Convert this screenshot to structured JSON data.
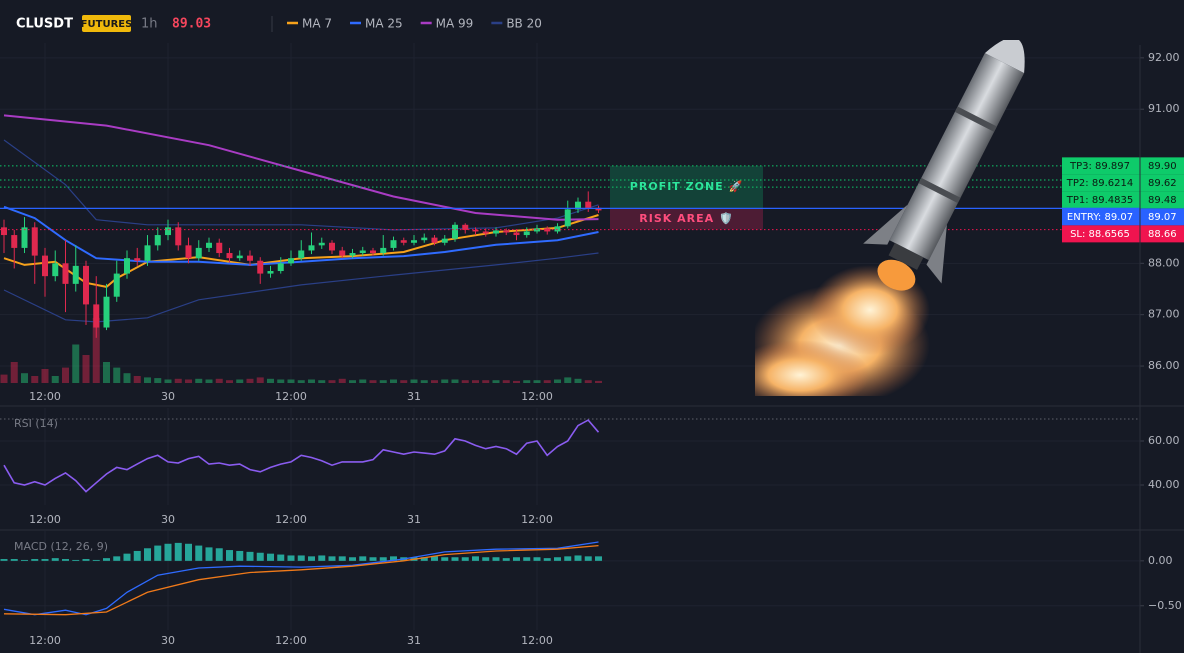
{
  "header": {
    "symbol": "CLUSDT",
    "badge": "FUTURES",
    "interval": "1h",
    "price": 89.03
  },
  "chart_data": [
    {
      "type": "candlestick",
      "xlim": [
        -0.39,
        110.83
      ],
      "xticks": [
        {
          "value": 4,
          "label": "12:00"
        },
        {
          "value": 16,
          "label": "30"
        },
        {
          "value": 28,
          "label": "12:00"
        },
        {
          "value": 40,
          "label": "31"
        },
        {
          "value": 52,
          "label": "12:00"
        }
      ],
      "ylim": [
        85.67,
        92.25
      ],
      "yticks": [
        {
          "value": 92,
          "label": "92.00"
        },
        {
          "value": 91,
          "label": "91.00"
        },
        {
          "value": 88,
          "label": "88.00"
        },
        {
          "value": 87,
          "label": "87.00"
        },
        {
          "value": 86,
          "label": "86.00"
        }
      ],
      "up_color": "#26d07c",
      "down_color": "#e0294f",
      "open": [
        88.7,
        88.55,
        88.3,
        88.7,
        88.15,
        87.75,
        88.0,
        87.6,
        87.95,
        87.2,
        86.75,
        87.35,
        87.8,
        88.1,
        88.05,
        88.35,
        88.55,
        88.7,
        88.35,
        88.1,
        88.3,
        88.4,
        88.2,
        88.1,
        88.15,
        88.05,
        87.8,
        87.85,
        88.0,
        88.1,
        88.25,
        88.35,
        88.4,
        88.25,
        88.15,
        88.2,
        88.25,
        88.2,
        88.3,
        88.45,
        88.4,
        88.45,
        88.5,
        88.4,
        88.48,
        88.75,
        88.65,
        88.62,
        88.58,
        88.64,
        88.6,
        88.55,
        88.62,
        88.68,
        88.62,
        88.72,
        89.05,
        89.2,
        89.08
      ],
      "high": [
        88.85,
        88.65,
        88.9,
        88.8,
        88.3,
        88.25,
        88.45,
        88.35,
        88.05,
        87.75,
        87.6,
        88.05,
        88.25,
        88.3,
        88.55,
        88.7,
        88.85,
        88.8,
        88.5,
        88.45,
        88.5,
        88.48,
        88.3,
        88.25,
        88.25,
        88.12,
        87.95,
        88.12,
        88.25,
        88.45,
        88.6,
        88.5,
        88.45,
        88.32,
        88.28,
        88.32,
        88.3,
        88.55,
        88.52,
        88.5,
        88.55,
        88.58,
        88.55,
        88.55,
        88.8,
        88.78,
        88.7,
        88.68,
        88.7,
        88.68,
        88.66,
        88.7,
        88.75,
        88.72,
        88.78,
        89.22,
        89.28,
        89.4,
        89.12
      ],
      "low": [
        88.2,
        87.9,
        88.2,
        87.6,
        87.35,
        87.65,
        87.05,
        87.45,
        86.8,
        86.55,
        86.7,
        87.25,
        87.7,
        87.95,
        87.95,
        88.25,
        88.45,
        88.25,
        88.0,
        88.05,
        88.22,
        88.12,
        88.02,
        88.05,
        87.95,
        87.6,
        87.72,
        87.8,
        87.95,
        88.05,
        88.18,
        88.28,
        88.18,
        88.1,
        88.1,
        88.15,
        88.15,
        88.15,
        88.25,
        88.35,
        88.35,
        88.4,
        88.35,
        88.35,
        88.42,
        88.58,
        88.55,
        88.52,
        88.52,
        88.55,
        88.45,
        88.5,
        88.58,
        88.56,
        88.58,
        88.68,
        88.98,
        89.0,
        88.98
      ],
      "close": [
        88.55,
        88.3,
        88.7,
        88.15,
        87.75,
        88.0,
        87.6,
        87.95,
        87.2,
        86.75,
        87.35,
        87.8,
        88.1,
        88.05,
        88.35,
        88.55,
        88.7,
        88.35,
        88.1,
        88.3,
        88.4,
        88.2,
        88.1,
        88.15,
        88.05,
        87.8,
        87.85,
        88.0,
        88.1,
        88.25,
        88.35,
        88.4,
        88.25,
        88.15,
        88.2,
        88.25,
        88.2,
        88.3,
        88.45,
        88.4,
        88.45,
        88.5,
        88.4,
        88.48,
        88.75,
        88.65,
        88.62,
        88.58,
        88.64,
        88.6,
        88.55,
        88.62,
        88.68,
        88.62,
        88.72,
        89.05,
        89.2,
        89.08,
        89.03
      ],
      "volume": [
        12,
        30,
        14,
        10,
        20,
        10,
        22,
        55,
        40,
        93,
        30,
        22,
        14,
        10,
        8,
        7,
        5,
        6,
        5,
        6,
        5,
        6,
        4,
        5,
        6,
        8,
        6,
        5,
        5,
        4,
        5,
        4,
        4,
        6,
        4,
        5,
        4,
        4,
        5,
        4,
        5,
        4,
        4,
        5,
        5,
        4,
        4,
        4,
        4,
        4,
        3,
        4,
        4,
        4,
        5,
        8,
        6,
        4,
        3
      ],
      "volume_ylim": [
        0,
        100
      ],
      "series": [
        {
          "name": "MA 7",
          "color": "#f7a21b",
          "x": [
            0,
            2,
            5,
            8,
            10,
            11,
            14,
            19,
            24,
            29,
            34,
            39,
            43,
            48,
            54,
            58
          ],
          "values": [
            88.1,
            87.97,
            88.03,
            87.62,
            87.54,
            87.71,
            88.03,
            88.12,
            87.97,
            88.1,
            88.14,
            88.22,
            88.45,
            88.61,
            88.69,
            88.94
          ]
        },
        {
          "name": "MA 25",
          "color": "#2f6bff",
          "x": [
            0,
            3,
            6,
            9,
            14,
            19,
            24,
            29,
            34,
            39,
            43,
            48,
            54,
            58
          ],
          "values": [
            89.1,
            88.88,
            88.45,
            88.1,
            88.03,
            88.03,
            87.97,
            88.03,
            88.1,
            88.14,
            88.22,
            88.36,
            88.45,
            88.61
          ]
        },
        {
          "name": "MA 99",
          "color": "#a93cc4",
          "x": [
            0,
            10,
            20,
            29,
            38,
            46,
            54,
            58
          ],
          "values": [
            90.88,
            90.68,
            90.3,
            89.8,
            89.3,
            88.98,
            88.85,
            88.86
          ]
        }
      ],
      "bands": {
        "name": "BB 20",
        "color": "#2a3f86",
        "x": [
          0,
          6,
          9,
          14,
          19,
          29,
          38,
          48,
          54,
          58
        ],
        "upper": [
          90.4,
          89.53,
          88.85,
          88.75,
          88.75,
          88.75,
          88.65,
          88.69,
          88.88,
          89.14
        ],
        "lower": [
          87.48,
          86.9,
          86.86,
          86.94,
          87.29,
          87.58,
          87.77,
          87.97,
          88.1,
          88.2
        ]
      },
      "levels": [
        {
          "label": "TP3: 89.897",
          "value": 89.897,
          "axis_label": "89.90",
          "color": "#0ecb6a",
          "style": "dotted"
        },
        {
          "label": "TP2: 89.6214",
          "value": 89.6214,
          "axis_label": "89.62",
          "color": "#0ecb6a",
          "style": "dotted"
        },
        {
          "label": "TP1: 89.4835",
          "value": 89.4835,
          "axis_label": "89.48",
          "color": "#0ecb6a",
          "style": "dotted"
        },
        {
          "label": "ENTRY: 89.07",
          "value": 89.07,
          "axis_label": "89.07",
          "color": "#2962ff",
          "style": "solid"
        },
        {
          "label": "SL: 88.6565",
          "value": 88.6565,
          "axis_label": "88.66",
          "color": "#f0144f",
          "style": "dotted"
        }
      ],
      "zones": [
        {
          "text": "PROFIT ZONE 🚀",
          "color": "#0d8f5b"
        },
        {
          "text": "RISK AREA 🛡️",
          "color": "#e0245e"
        }
      ]
    },
    {
      "type": "line",
      "title": "RSI (14)",
      "ylim": [
        30.9,
        74.1
      ],
      "yticks": [
        {
          "value": 60,
          "label": "60.00"
        },
        {
          "value": 40,
          "label": "40.00"
        }
      ],
      "ref_line": 70,
      "color": "#8a5cf0",
      "values": [
        49,
        41,
        40,
        41.5,
        40,
        43,
        45.5,
        42,
        37,
        41,
        45,
        48,
        47,
        49.5,
        52,
        53.5,
        50.5,
        50,
        52,
        53,
        49.5,
        50,
        49,
        49.5,
        47,
        46,
        48,
        49.5,
        50.5,
        53.5,
        52.5,
        51,
        49,
        50.5,
        50.5,
        50.5,
        51.5,
        56,
        55,
        54,
        55,
        54.5,
        54,
        55.5,
        61,
        60,
        58,
        56.5,
        57.5,
        56.5,
        54,
        59,
        60,
        53.5,
        57.5,
        60,
        67,
        69.5,
        64
      ]
    },
    {
      "type": "macd",
      "title": "MACD (12, 26, 9)",
      "ylim": [
        -0.77,
        0.31
      ],
      "yticks": [
        {
          "value": 0,
          "label": "0.00"
        },
        {
          "value": -0.5,
          "label": "−0.50"
        }
      ],
      "histogram": {
        "color": "#26a69a",
        "values": [
          0.02,
          0.02,
          0.01,
          0.02,
          0.02,
          0.03,
          0.02,
          0.01,
          0.02,
          0.01,
          0.03,
          0.05,
          0.08,
          0.11,
          0.14,
          0.17,
          0.19,
          0.2,
          0.19,
          0.17,
          0.15,
          0.14,
          0.12,
          0.11,
          0.1,
          0.09,
          0.08,
          0.07,
          0.06,
          0.06,
          0.05,
          0.06,
          0.05,
          0.05,
          0.04,
          0.05,
          0.04,
          0.04,
          0.05,
          0.04,
          0.04,
          0.04,
          0.05,
          0.04,
          0.04,
          0.04,
          0.05,
          0.04,
          0.04,
          0.03,
          0.04,
          0.04,
          0.04,
          0.03,
          0.04,
          0.05,
          0.06,
          0.05,
          0.05
        ]
      },
      "series": [
        {
          "color": "#2f6bff",
          "x": [
            0,
            3,
            6,
            8,
            10,
            12,
            15,
            19,
            23,
            29,
            34,
            39,
            43,
            48,
            54,
            58
          ],
          "values": [
            -0.54,
            -0.6,
            -0.55,
            -0.6,
            -0.53,
            -0.35,
            -0.16,
            -0.08,
            -0.06,
            -0.07,
            -0.05,
            0.02,
            0.1,
            0.13,
            0.14,
            0.21
          ]
        },
        {
          "color": "#f07a1a",
          "x": [
            0,
            6,
            10,
            14,
            19,
            24,
            29,
            34,
            39,
            43,
            48,
            54,
            58
          ],
          "values": [
            -0.59,
            -0.6,
            -0.57,
            -0.35,
            -0.21,
            -0.13,
            -0.1,
            -0.06,
            0.0,
            0.07,
            0.11,
            0.13,
            0.17
          ]
        }
      ]
    }
  ]
}
